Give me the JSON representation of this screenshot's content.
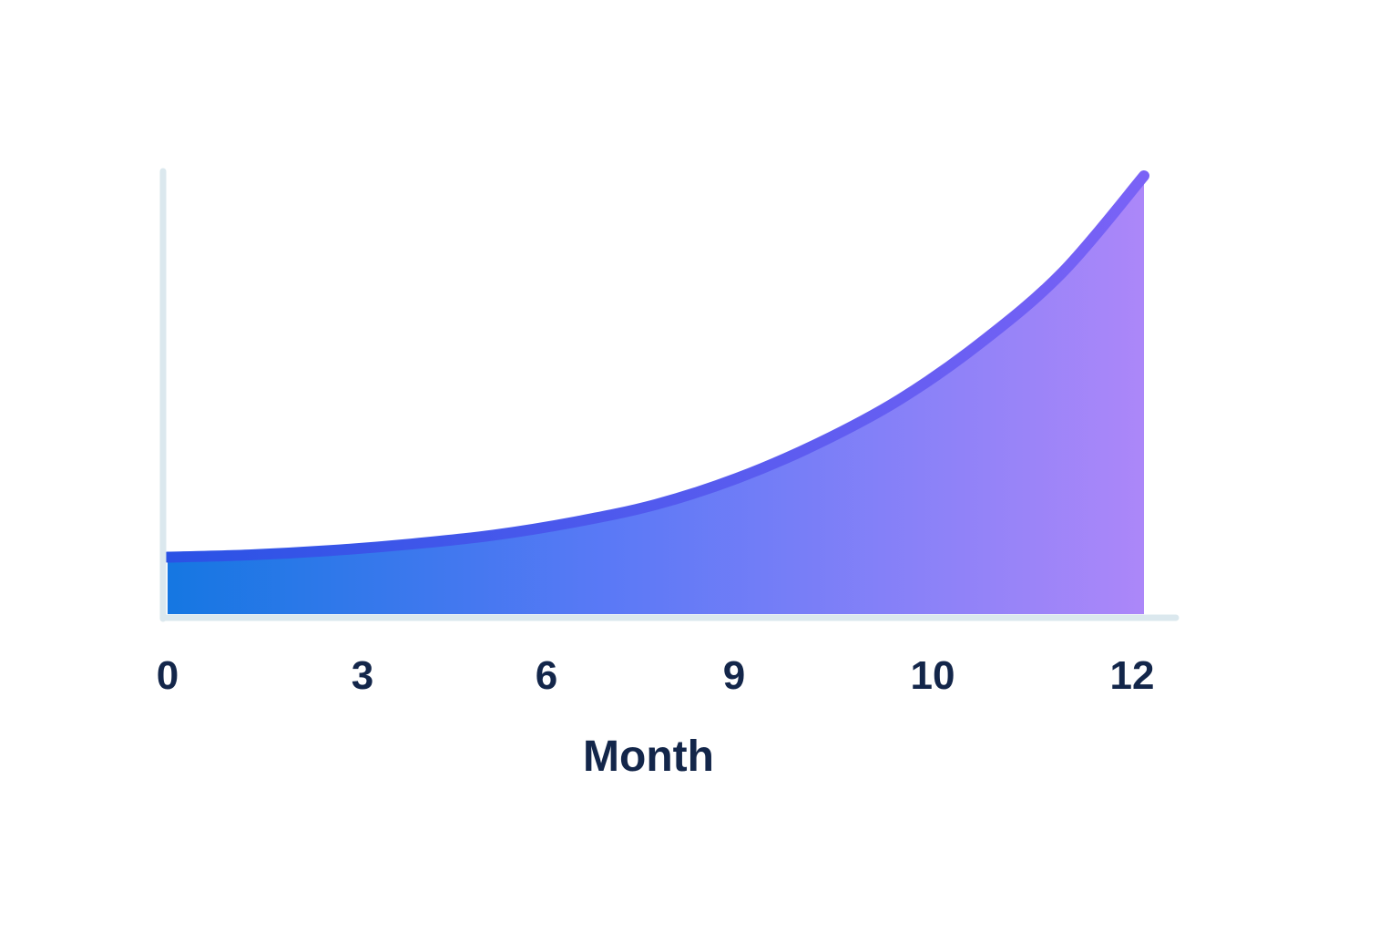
{
  "chart_data": {
    "type": "area",
    "title": "",
    "xlabel": "Month",
    "ylabel": "",
    "x_ticks": [
      "0",
      "3",
      "6",
      "9",
      "10",
      "12"
    ],
    "series": [
      {
        "values": [
          [
            0,
            0.13
          ],
          [
            1,
            0.135
          ],
          [
            2,
            0.145
          ],
          [
            3,
            0.16
          ],
          [
            4,
            0.18
          ],
          [
            5,
            0.21
          ],
          [
            6,
            0.25
          ],
          [
            7,
            0.31
          ],
          [
            8,
            0.39
          ],
          [
            9,
            0.49
          ],
          [
            10,
            0.62
          ],
          [
            11,
            0.78
          ],
          [
            12,
            1.0
          ]
        ]
      }
    ],
    "ylim": [
      0,
      1.02
    ],
    "grid": false,
    "legend": "none",
    "colors": {
      "axis": "#dbe8ee",
      "text": "#13264a",
      "gradient_start": "#1577e2",
      "gradient_mid": "#5a79f6",
      "gradient_end": "#ac87f9",
      "line_start": "#2a52e5",
      "line_end": "#7a62f6"
    }
  }
}
